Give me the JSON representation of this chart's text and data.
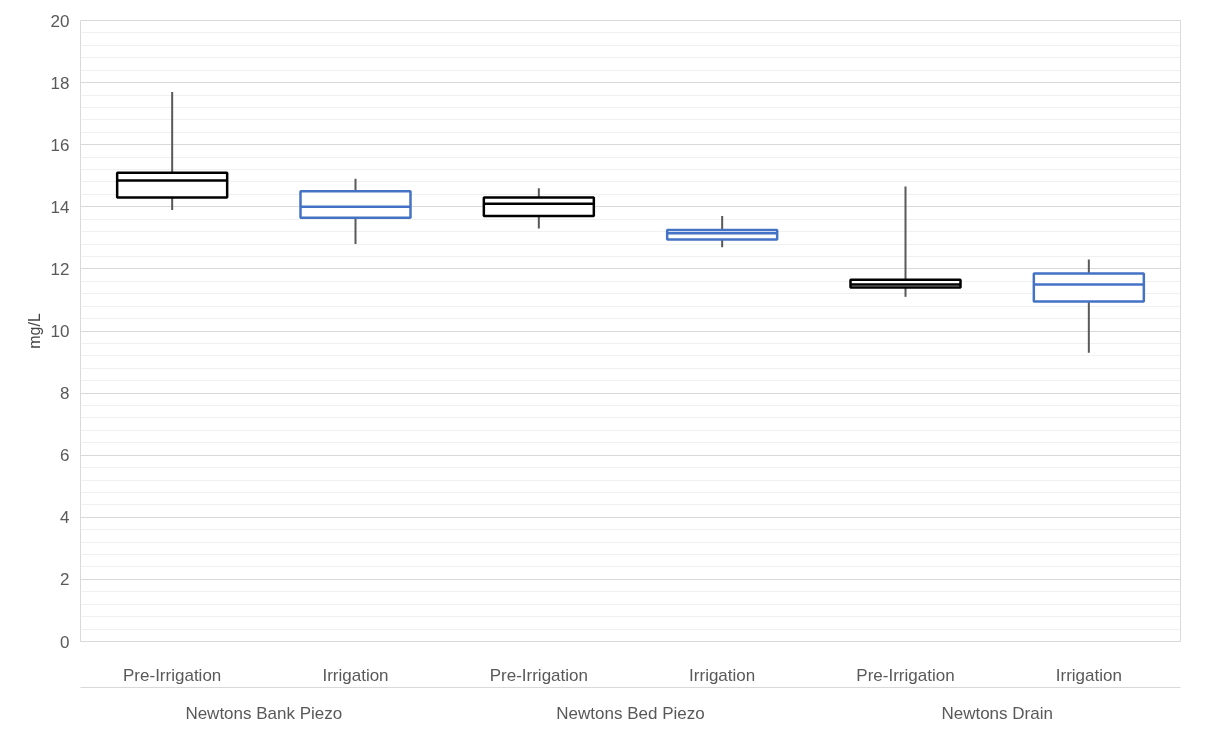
{
  "chart_data": {
    "type": "box",
    "ylabel": "mg/L",
    "categories": [
      "Pre-Irrigation",
      "Irrigation",
      "Pre-Irrigation",
      "Irrigation",
      "Pre-Irrigation",
      "Irrigation"
    ],
    "annotations": [
      "Newtons Bank Piezo",
      "Newtons Bed Piezo",
      "Newtons Drain"
    ],
    "colors": [
      "#000000",
      "#4472c4",
      "#000000",
      "#4472c4",
      "#000000",
      "#4472c4"
    ],
    "boxes": [
      {
        "low": 13.9,
        "q1": 14.3,
        "median": 14.85,
        "q3": 15.1,
        "high": 17.7
      },
      {
        "low": 12.8,
        "q1": 13.65,
        "median": 14.0,
        "q3": 14.5,
        "high": 14.9
      },
      {
        "low": 13.3,
        "q1": 13.7,
        "median": 14.1,
        "q3": 14.3,
        "high": 14.6
      },
      {
        "low": 12.7,
        "q1": 12.95,
        "median": 13.15,
        "q3": 13.25,
        "high": 13.7
      },
      {
        "low": 11.1,
        "q1": 11.4,
        "median": 11.5,
        "q3": 11.65,
        "high": 14.65
      },
      {
        "low": 9.3,
        "q1": 10.95,
        "median": 11.5,
        "q3": 11.85,
        "high": 12.3
      }
    ],
    "ylim": [
      0,
      20
    ],
    "yticks": [
      0,
      2,
      4,
      6,
      8,
      10,
      12,
      14,
      16,
      18,
      20
    ],
    "grid": "y"
  }
}
